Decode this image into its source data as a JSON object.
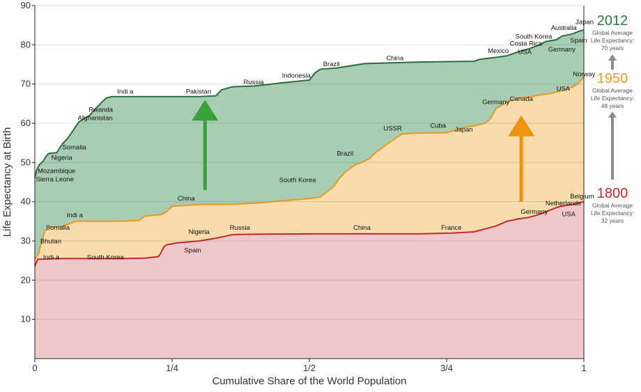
{
  "chart_data": {
    "type": "area",
    "xlabel": "Cumulative Share of the World Population",
    "ylabel": "Life Expectancy at Birth",
    "xlim": [
      0,
      1
    ],
    "ylim": [
      0,
      90
    ],
    "x_ticks": [
      {
        "value": 0,
        "label": "0"
      },
      {
        "value": 0.25,
        "label": "1/4"
      },
      {
        "value": 0.5,
        "label": "1/2"
      },
      {
        "value": 0.75,
        "label": "3/4"
      },
      {
        "value": 1,
        "label": "1"
      }
    ],
    "y_ticks": [
      10,
      20,
      30,
      40,
      50,
      60,
      70,
      80,
      90
    ],
    "grid": true,
    "series": [
      {
        "name": "1800",
        "color": "#c0282d",
        "fill": "#efc8cb",
        "points": [
          [
            0,
            23.5
          ],
          [
            0.005,
            25.3
          ],
          [
            0.04,
            25.5
          ],
          [
            0.1,
            25.5
          ],
          [
            0.15,
            25.5
          ],
          [
            0.2,
            25.6
          ],
          [
            0.225,
            26
          ],
          [
            0.23,
            27
          ],
          [
            0.235,
            28.5
          ],
          [
            0.24,
            29
          ],
          [
            0.26,
            29.5
          ],
          [
            0.3,
            30
          ],
          [
            0.33,
            30.7
          ],
          [
            0.35,
            31.3
          ],
          [
            0.36,
            31.6
          ],
          [
            0.4,
            31.7
          ],
          [
            0.5,
            31.8
          ],
          [
            0.6,
            31.8
          ],
          [
            0.7,
            31.8
          ],
          [
            0.76,
            32
          ],
          [
            0.8,
            32.3
          ],
          [
            0.84,
            33.8
          ],
          [
            0.86,
            35
          ],
          [
            0.88,
            35.6
          ],
          [
            0.9,
            36
          ],
          [
            0.92,
            36.8
          ],
          [
            0.95,
            38.5
          ],
          [
            0.96,
            38.9
          ],
          [
            0.98,
            39.3
          ],
          [
            1,
            40
          ]
        ]
      },
      {
        "name": "1950",
        "color": "#e8971f",
        "fill": "#f8dcac",
        "points": [
          [
            0,
            25.3
          ],
          [
            0.006,
            26.5
          ],
          [
            0.012,
            29.5
          ],
          [
            0.018,
            32.5
          ],
          [
            0.025,
            33.5
          ],
          [
            0.05,
            33.7
          ],
          [
            0.06,
            34.2
          ],
          [
            0.075,
            35
          ],
          [
            0.1,
            35
          ],
          [
            0.15,
            35
          ],
          [
            0.19,
            35.2
          ],
          [
            0.2,
            36.3
          ],
          [
            0.23,
            36.7
          ],
          [
            0.24,
            37.5
          ],
          [
            0.25,
            38.8
          ],
          [
            0.3,
            39.3
          ],
          [
            0.35,
            39.3
          ],
          [
            0.4,
            39.6
          ],
          [
            0.45,
            40.2
          ],
          [
            0.5,
            40.8
          ],
          [
            0.52,
            41.2
          ],
          [
            0.53,
            42.3
          ],
          [
            0.545,
            44
          ],
          [
            0.555,
            46
          ],
          [
            0.565,
            47.5
          ],
          [
            0.575,
            48.6
          ],
          [
            0.585,
            49.5
          ],
          [
            0.595,
            50
          ],
          [
            0.61,
            51
          ],
          [
            0.62,
            52.5
          ],
          [
            0.64,
            54.5
          ],
          [
            0.66,
            56.5
          ],
          [
            0.67,
            57.3
          ],
          [
            0.7,
            57.5
          ],
          [
            0.75,
            57.6
          ],
          [
            0.76,
            58
          ],
          [
            0.78,
            58.9
          ],
          [
            0.8,
            59.3
          ],
          [
            0.82,
            60
          ],
          [
            0.83,
            61.2
          ],
          [
            0.84,
            63.8
          ],
          [
            0.86,
            65.3
          ],
          [
            0.87,
            66
          ],
          [
            0.88,
            66.4
          ],
          [
            0.9,
            66.7
          ],
          [
            0.92,
            67.2
          ],
          [
            0.94,
            67.6
          ],
          [
            0.96,
            68.3
          ],
          [
            0.98,
            69.3
          ],
          [
            0.99,
            70.2
          ],
          [
            1,
            71.8
          ]
        ]
      },
      {
        "name": "2012",
        "color": "#2c6b3c",
        "fill": "#a8cdb3",
        "points": [
          [
            0,
            46
          ],
          [
            0.003,
            48
          ],
          [
            0.008,
            49.4
          ],
          [
            0.015,
            50.3
          ],
          [
            0.02,
            51.5
          ],
          [
            0.025,
            52.3
          ],
          [
            0.04,
            52.5
          ],
          [
            0.05,
            54.7
          ],
          [
            0.06,
            56.2
          ],
          [
            0.07,
            58.2
          ],
          [
            0.08,
            60.3
          ],
          [
            0.09,
            61.2
          ],
          [
            0.1,
            62
          ],
          [
            0.11,
            63.6
          ],
          [
            0.12,
            65.1
          ],
          [
            0.13,
            66.4
          ],
          [
            0.14,
            66.8
          ],
          [
            0.2,
            66.8
          ],
          [
            0.3,
            66.8
          ],
          [
            0.33,
            67
          ],
          [
            0.34,
            68.5
          ],
          [
            0.36,
            69.3
          ],
          [
            0.4,
            69.5
          ],
          [
            0.45,
            70.3
          ],
          [
            0.5,
            71
          ],
          [
            0.51,
            72.8
          ],
          [
            0.52,
            73.8
          ],
          [
            0.55,
            74.1
          ],
          [
            0.6,
            75.2
          ],
          [
            0.7,
            75.6
          ],
          [
            0.8,
            75.8
          ],
          [
            0.81,
            76.3
          ],
          [
            0.84,
            76.8
          ],
          [
            0.86,
            77.2
          ],
          [
            0.87,
            77.7
          ],
          [
            0.88,
            78.2
          ],
          [
            0.9,
            79
          ],
          [
            0.92,
            80
          ],
          [
            0.93,
            80.8
          ],
          [
            0.95,
            81.3
          ],
          [
            0.96,
            82.2
          ],
          [
            0.98,
            82.8
          ],
          [
            0.99,
            83.4
          ],
          [
            1,
            83.8
          ]
        ]
      }
    ],
    "annotations": [
      {
        "text": "Indi a",
        "x": 0.015,
        "y": 25.8
      },
      {
        "text": "South Korea",
        "x": 0.095,
        "y": 25.8
      },
      {
        "text": "Bhutan",
        "x": 0.01,
        "y": 29.9
      },
      {
        "text": "Somalia",
        "x": 0.02,
        "y": 33.4
      },
      {
        "text": "Indi a",
        "x": 0.058,
        "y": 36.6
      },
      {
        "text": "China",
        "x": 0.26,
        "y": 40.8
      },
      {
        "text": "Nigeria",
        "x": 0.28,
        "y": 32.3
      },
      {
        "text": "Spain",
        "x": 0.272,
        "y": 27.6
      },
      {
        "text": "Russia",
        "x": 0.355,
        "y": 33.4
      },
      {
        "text": "China",
        "x": 0.58,
        "y": 33.4
      },
      {
        "text": "France",
        "x": 0.74,
        "y": 33.4
      },
      {
        "text": "Germany",
        "x": 0.885,
        "y": 37.5
      },
      {
        "text": "USA",
        "x": 0.96,
        "y": 36.8
      },
      {
        "text": "Netherlands",
        "x": 0.93,
        "y": 39.6
      },
      {
        "text": "Belgium",
        "x": 0.975,
        "y": 41.4
      },
      {
        "text": "South Korea",
        "x": 0.445,
        "y": 45.5
      },
      {
        "text": "Brazil",
        "x": 0.55,
        "y": 52.3
      },
      {
        "text": "USSR",
        "x": 0.635,
        "y": 58.7
      },
      {
        "text": "Cuba",
        "x": 0.72,
        "y": 59.4
      },
      {
        "text": "Japan",
        "x": 0.765,
        "y": 58.4
      },
      {
        "text": "Germany",
        "x": 0.815,
        "y": 65.4
      },
      {
        "text": "Canada",
        "x": 0.865,
        "y": 66.2
      },
      {
        "text": "USA",
        "x": 0.95,
        "y": 68.8
      },
      {
        "text": "Norway",
        "x": 0.98,
        "y": 72.5
      },
      {
        "text": "Sierra Leone",
        "x": 0.002,
        "y": 45.7
      },
      {
        "text": "Mozambique",
        "x": 0.005,
        "y": 47.8
      },
      {
        "text": "Nigeria",
        "x": 0.03,
        "y": 51.2
      },
      {
        "text": "Somalia",
        "x": 0.05,
        "y": 53.9
      },
      {
        "text": "Afghanistan",
        "x": 0.078,
        "y": 61.3
      },
      {
        "text": "Rwanda",
        "x": 0.098,
        "y": 63.5
      },
      {
        "text": "Indi a",
        "x": 0.15,
        "y": 68.1
      },
      {
        "text": "Pakistan",
        "x": 0.275,
        "y": 68.1
      },
      {
        "text": "Russia",
        "x": 0.38,
        "y": 70.5
      },
      {
        "text": "Indonesia",
        "x": 0.45,
        "y": 72.2
      },
      {
        "text": "Brazil",
        "x": 0.525,
        "y": 75.1
      },
      {
        "text": "China",
        "x": 0.64,
        "y": 76.6
      },
      {
        "text": "Mexico",
        "x": 0.825,
        "y": 78.5
      },
      {
        "text": "Costa Rica",
        "x": 0.865,
        "y": 80.3
      },
      {
        "text": "USA",
        "x": 0.88,
        "y": 78.2
      },
      {
        "text": "South Korea",
        "x": 0.875,
        "y": 82.1
      },
      {
        "text": "Germany",
        "x": 0.935,
        "y": 78.8
      },
      {
        "text": "Spain",
        "x": 0.975,
        "y": 81.1
      },
      {
        "text": "Australia",
        "x": 0.94,
        "y": 84.3
      },
      {
        "text": "Japan",
        "x": 0.985,
        "y": 85.8
      }
    ],
    "arrows": [
      {
        "color": "#3aa03a",
        "from": 43,
        "to": 66
      },
      {
        "color": "#f0920f",
        "from": 40,
        "to": 62
      }
    ]
  },
  "right_panel": {
    "entries": [
      {
        "year": "2012",
        "color": "#2c7a3f",
        "lines": [
          "Global Average",
          "Life Expectancy:",
          "70 years"
        ]
      },
      {
        "year": "1950",
        "color": "#f19a20",
        "lines": [
          "Global Average",
          "Life Expectancy:",
          "48 years"
        ]
      },
      {
        "year": "1800",
        "color": "#c62828",
        "lines": [
          "Global Average",
          "Life Expectancy:",
          "32 years"
        ]
      }
    ],
    "arrow_color": "#8c8c8c"
  }
}
